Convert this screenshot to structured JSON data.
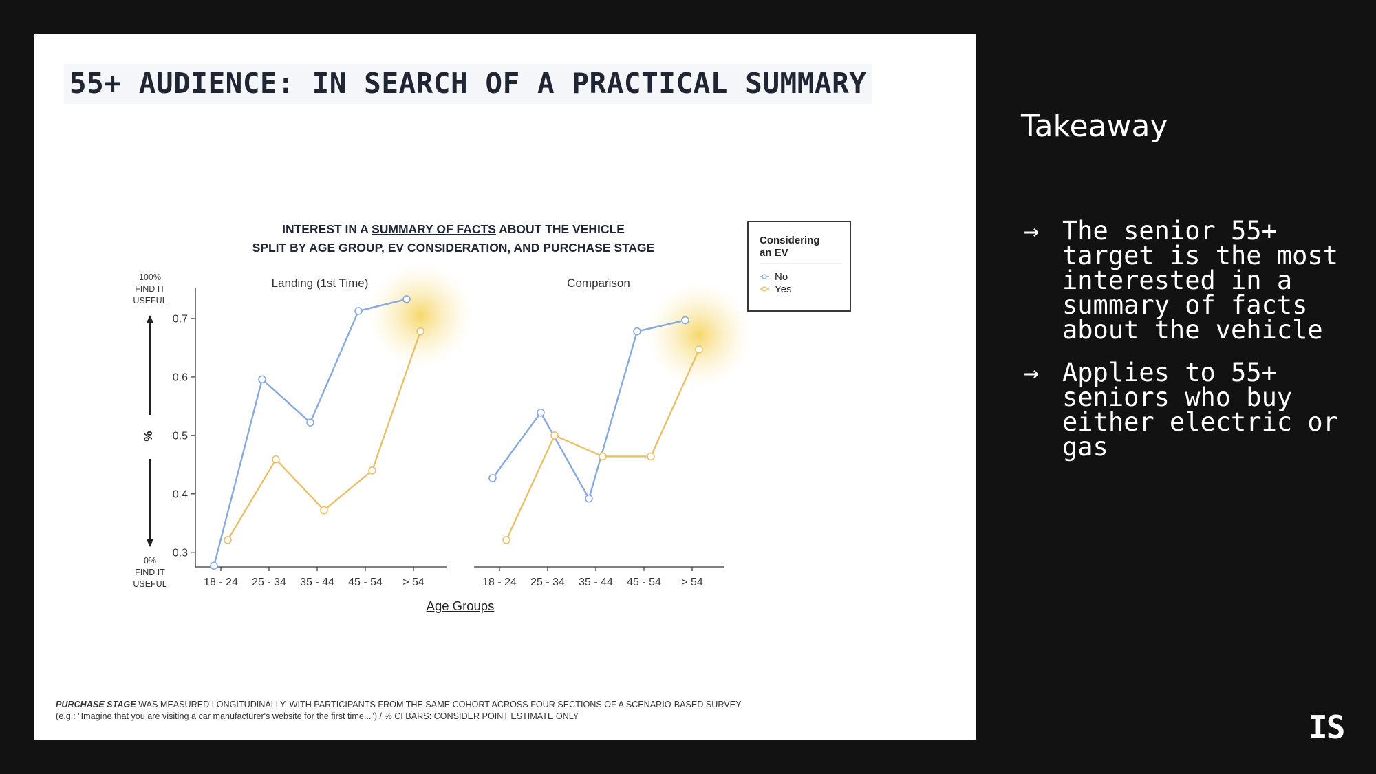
{
  "slide": {
    "title": "55+ AUDIENCE: IN SEARCH OF A PRACTICAL SUMMARY",
    "footnote_em": "PURCHASE STAGE",
    "footnote_rest": " WAS MEASURED LONGITUDINALLY, WITH PARTICIPANTS FROM THE SAME COHORT ACROSS FOUR SECTIONS OF A SCENARIO-BASED SURVEY",
    "footnote_line2": "(e.g.: \"Imagine that you are visiting a car manufacturer's website for the first time...\") / % CI BARS: CONSIDER POINT ESTIMATE ONLY"
  },
  "sidebar": {
    "heading": "Takeaway",
    "arrow": "→",
    "points": [
      "The senior 55+ target is the most interested in a summary of facts about the vehicle",
      "Applies to 55+ seniors who buy either electric or gas"
    ],
    "logo": "IS"
  },
  "chart_data": {
    "type": "line",
    "title_pre": "INTEREST IN A ",
    "title_underlined": "SUMMARY OF FACTS",
    "title_post": " ABOUT THE VEHICLE",
    "subtitle": "SPLIT BY AGE GROUP, EV CONSIDERATION, AND PURCHASE STAGE",
    "xlabel": "Age Groups",
    "ylabel": "%",
    "y_top_note": [
      "100%",
      "FIND IT",
      "USEFUL"
    ],
    "y_bottom_note": [
      "0%",
      "FIND IT",
      "USEFUL"
    ],
    "categories": [
      "18 - 24",
      "25 - 34",
      "35 - 44",
      "45 - 54",
      "> 54"
    ],
    "ylim": [
      0.275,
      0.74
    ],
    "yticks": [
      0.3,
      0.4,
      0.5,
      0.6,
      0.7
    ],
    "legend": {
      "title": [
        "Considering",
        "an EV"
      ],
      "placement": "top-right",
      "entries": [
        "No",
        "Yes"
      ]
    },
    "colors": {
      "No": "#86a9de",
      "Yes": "#e8c06a",
      "highlight": "#f5d04f"
    },
    "panels": [
      {
        "name": "Landing (1st Time)",
        "series": [
          {
            "name": "No",
            "values": [
              0.277,
              0.596,
              0.522,
              0.713,
              0.733
            ]
          },
          {
            "name": "Yes",
            "values": [
              0.321,
              0.459,
              0.372,
              0.44,
              0.678
            ]
          }
        ]
      },
      {
        "name": "Comparison",
        "series": [
          {
            "name": "No",
            "values": [
              0.427,
              0.539,
              0.392,
              0.678,
              0.697
            ]
          },
          {
            "name": "Yes",
            "values": [
              0.321,
              0.5,
              0.464,
              0.464,
              0.647
            ]
          }
        ]
      }
    ]
  }
}
